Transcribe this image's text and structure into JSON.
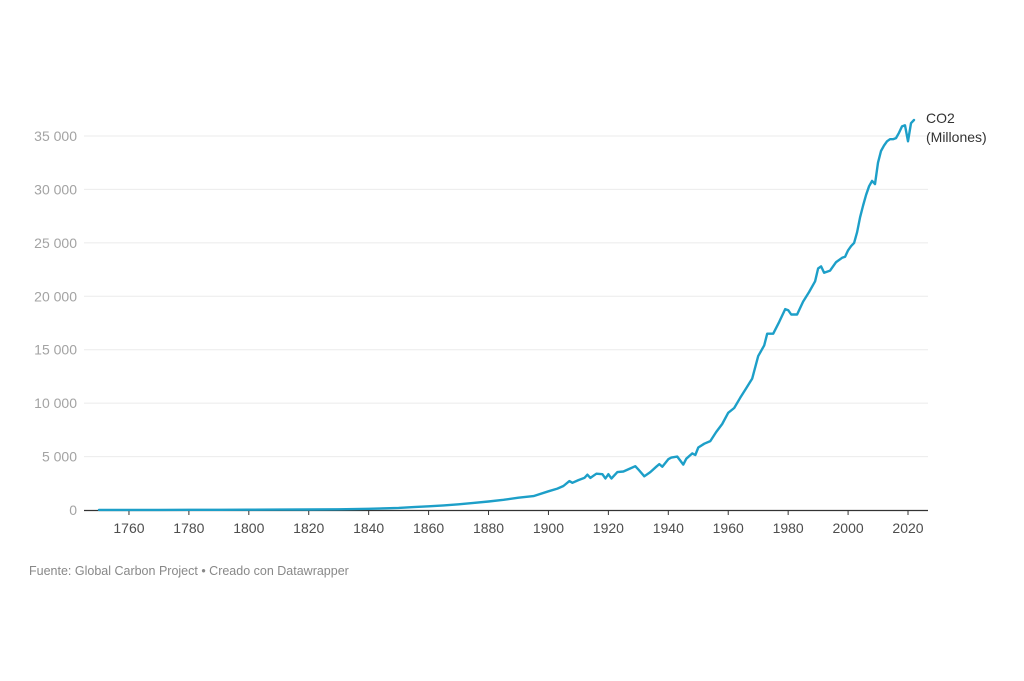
{
  "chart_data": {
    "type": "line",
    "title": "",
    "xlabel": "",
    "ylabel": "",
    "xlim": [
      1750,
      2022
    ],
    "ylim": [
      0,
      35000
    ],
    "grid": true,
    "x_ticks": [
      1760,
      1780,
      1800,
      1820,
      1840,
      1860,
      1880,
      1900,
      1920,
      1940,
      1960,
      1980,
      2000,
      2020
    ],
    "x_tick_labels": [
      "1760",
      "1780",
      "1800",
      "1820",
      "1840",
      "1860",
      "1880",
      "1900",
      "1920",
      "1940",
      "1960",
      "1980",
      "2000",
      "2020"
    ],
    "y_ticks": [
      0,
      5000,
      10000,
      15000,
      20000,
      25000,
      30000,
      35000
    ],
    "y_tick_labels": [
      "0",
      "5 000",
      "10 000",
      "15 000",
      "20 000",
      "25 000",
      "30 000",
      "35 000"
    ],
    "series": [
      {
        "name": "CO2 (Millones)",
        "label_lines": [
          "CO2",
          "(Millones)"
        ],
        "color": "#1d9fc8",
        "points": [
          [
            1750,
            9
          ],
          [
            1760,
            10
          ],
          [
            1770,
            12
          ],
          [
            1780,
            15
          ],
          [
            1790,
            20
          ],
          [
            1800,
            28
          ],
          [
            1810,
            37
          ],
          [
            1820,
            50
          ],
          [
            1830,
            70
          ],
          [
            1840,
            110
          ],
          [
            1850,
            200
          ],
          [
            1855,
            270
          ],
          [
            1860,
            350
          ],
          [
            1865,
            430
          ],
          [
            1870,
            530
          ],
          [
            1875,
            660
          ],
          [
            1880,
            800
          ],
          [
            1885,
            950
          ],
          [
            1890,
            1150
          ],
          [
            1895,
            1300
          ],
          [
            1900,
            1750
          ],
          [
            1903,
            2000
          ],
          [
            1905,
            2250
          ],
          [
            1907,
            2700
          ],
          [
            1908,
            2550
          ],
          [
            1910,
            2800
          ],
          [
            1912,
            3000
          ],
          [
            1913,
            3300
          ],
          [
            1914,
            3000
          ],
          [
            1916,
            3400
          ],
          [
            1918,
            3350
          ],
          [
            1919,
            2950
          ],
          [
            1920,
            3350
          ],
          [
            1921,
            2950
          ],
          [
            1923,
            3550
          ],
          [
            1925,
            3600
          ],
          [
            1927,
            3850
          ],
          [
            1929,
            4100
          ],
          [
            1930,
            3800
          ],
          [
            1932,
            3150
          ],
          [
            1934,
            3550
          ],
          [
            1936,
            4050
          ],
          [
            1937,
            4300
          ],
          [
            1938,
            4050
          ],
          [
            1940,
            4750
          ],
          [
            1941,
            4900
          ],
          [
            1943,
            5000
          ],
          [
            1945,
            4250
          ],
          [
            1946,
            4800
          ],
          [
            1948,
            5300
          ],
          [
            1949,
            5150
          ],
          [
            1950,
            5850
          ],
          [
            1952,
            6200
          ],
          [
            1954,
            6450
          ],
          [
            1956,
            7300
          ],
          [
            1958,
            8050
          ],
          [
            1960,
            9100
          ],
          [
            1962,
            9550
          ],
          [
            1964,
            10500
          ],
          [
            1966,
            11400
          ],
          [
            1968,
            12300
          ],
          [
            1970,
            14400
          ],
          [
            1972,
            15400
          ],
          [
            1973,
            16500
          ],
          [
            1974,
            16500
          ],
          [
            1975,
            16500
          ],
          [
            1977,
            17600
          ],
          [
            1979,
            18800
          ],
          [
            1980,
            18700
          ],
          [
            1981,
            18300
          ],
          [
            1983,
            18300
          ],
          [
            1985,
            19500
          ],
          [
            1987,
            20400
          ],
          [
            1989,
            21400
          ],
          [
            1990,
            22600
          ],
          [
            1991,
            22800
          ],
          [
            1992,
            22200
          ],
          [
            1994,
            22400
          ],
          [
            1996,
            23200
          ],
          [
            1998,
            23600
          ],
          [
            1999,
            23700
          ],
          [
            2000,
            24300
          ],
          [
            2001,
            24700
          ],
          [
            2002,
            25000
          ],
          [
            2003,
            26000
          ],
          [
            2004,
            27400
          ],
          [
            2005,
            28500
          ],
          [
            2006,
            29500
          ],
          [
            2007,
            30300
          ],
          [
            2008,
            30800
          ],
          [
            2009,
            30500
          ],
          [
            2010,
            32500
          ],
          [
            2011,
            33600
          ],
          [
            2012,
            34100
          ],
          [
            2013,
            34500
          ],
          [
            2014,
            34700
          ],
          [
            2015,
            34700
          ],
          [
            2016,
            34800
          ],
          [
            2017,
            35300
          ],
          [
            2018,
            35900
          ],
          [
            2019,
            36000
          ],
          [
            2020,
            34500
          ],
          [
            2021,
            36200
          ],
          [
            2022,
            36500
          ]
        ]
      }
    ]
  },
  "footer": {
    "source": "Fuente: Global Carbon Project • Creado con Datawrapper"
  }
}
